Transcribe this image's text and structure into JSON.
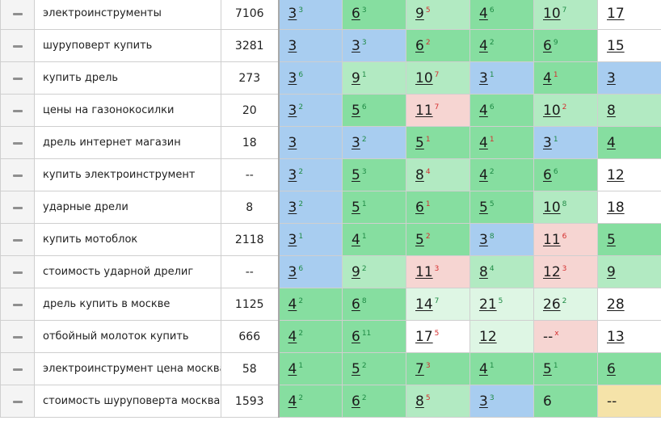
{
  "colors": {
    "blue": "#a8cdf0",
    "green": "#86dea0",
    "lgreen": "#b2eac2",
    "pale": "#def6e4",
    "pink": "#f6d5d2",
    "white": "#ffffff",
    "yellow": "#f5e3a9",
    "delta_up": "#1e8a44",
    "delta_down": "#d42f2f"
  },
  "handle_icon": "drag-handle-icon",
  "rows": [
    {
      "keyword": "электроинструменты",
      "freq": "7106",
      "cells": [
        {
          "v": "3",
          "d": "3",
          "dir": "up",
          "c": "blue"
        },
        {
          "v": "6",
          "d": "3",
          "dir": "up",
          "c": "green"
        },
        {
          "v": "9",
          "d": "5",
          "dir": "dn",
          "c": "lgreen"
        },
        {
          "v": "4",
          "d": "6",
          "dir": "up",
          "c": "green"
        },
        {
          "v": "10",
          "d": "7",
          "dir": "up",
          "c": "lgreen"
        },
        {
          "v": "17",
          "d": "",
          "dir": "",
          "c": "white"
        }
      ]
    },
    {
      "keyword": "шуруповерт купить",
      "freq": "3281",
      "cells": [
        {
          "v": "3",
          "d": "",
          "dir": "",
          "c": "blue"
        },
        {
          "v": "3",
          "d": "3",
          "dir": "up",
          "c": "blue"
        },
        {
          "v": "6",
          "d": "2",
          "dir": "dn",
          "c": "green"
        },
        {
          "v": "4",
          "d": "2",
          "dir": "up",
          "c": "green"
        },
        {
          "v": "6",
          "d": "9",
          "dir": "up",
          "c": "green"
        },
        {
          "v": "15",
          "d": "",
          "dir": "",
          "c": "white"
        }
      ]
    },
    {
      "keyword": "купить дрель",
      "freq": "273",
      "cells": [
        {
          "v": "3",
          "d": "6",
          "dir": "up",
          "c": "blue"
        },
        {
          "v": "9",
          "d": "1",
          "dir": "up",
          "c": "lgreen"
        },
        {
          "v": "10",
          "d": "7",
          "dir": "dn",
          "c": "lgreen"
        },
        {
          "v": "3",
          "d": "1",
          "dir": "up",
          "c": "blue"
        },
        {
          "v": "4",
          "d": "1",
          "dir": "dn",
          "c": "green"
        },
        {
          "v": "3",
          "d": "",
          "dir": "",
          "c": "blue"
        }
      ]
    },
    {
      "keyword": "цены на газонокосилки",
      "freq": "20",
      "cells": [
        {
          "v": "3",
          "d": "2",
          "dir": "up",
          "c": "blue"
        },
        {
          "v": "5",
          "d": "6",
          "dir": "up",
          "c": "green"
        },
        {
          "v": "11",
          "d": "7",
          "dir": "dn",
          "c": "pink"
        },
        {
          "v": "4",
          "d": "6",
          "dir": "up",
          "c": "green"
        },
        {
          "v": "10",
          "d": "2",
          "dir": "dn",
          "c": "lgreen"
        },
        {
          "v": "8",
          "d": "",
          "dir": "",
          "c": "lgreen"
        }
      ]
    },
    {
      "keyword": "дрель интернет магазин",
      "freq": "18",
      "cells": [
        {
          "v": "3",
          "d": "",
          "dir": "",
          "c": "blue"
        },
        {
          "v": "3",
          "d": "2",
          "dir": "up",
          "c": "blue"
        },
        {
          "v": "5",
          "d": "1",
          "dir": "dn",
          "c": "green"
        },
        {
          "v": "4",
          "d": "1",
          "dir": "dn",
          "c": "green"
        },
        {
          "v": "3",
          "d": "1",
          "dir": "up",
          "c": "blue"
        },
        {
          "v": "4",
          "d": "",
          "dir": "",
          "c": "green"
        }
      ]
    },
    {
      "keyword": "купить электроинструмент",
      "freq": "--",
      "cells": [
        {
          "v": "3",
          "d": "2",
          "dir": "up",
          "c": "blue"
        },
        {
          "v": "5",
          "d": "3",
          "dir": "up",
          "c": "green"
        },
        {
          "v": "8",
          "d": "4",
          "dir": "dn",
          "c": "lgreen"
        },
        {
          "v": "4",
          "d": "2",
          "dir": "up",
          "c": "green"
        },
        {
          "v": "6",
          "d": "6",
          "dir": "up",
          "c": "green"
        },
        {
          "v": "12",
          "d": "",
          "dir": "",
          "c": "white"
        }
      ]
    },
    {
      "keyword": "ударные дрели",
      "freq": "8",
      "cells": [
        {
          "v": "3",
          "d": "2",
          "dir": "up",
          "c": "blue"
        },
        {
          "v": "5",
          "d": "1",
          "dir": "up",
          "c": "green"
        },
        {
          "v": "6",
          "d": "1",
          "dir": "dn",
          "c": "green"
        },
        {
          "v": "5",
          "d": "5",
          "dir": "up",
          "c": "green"
        },
        {
          "v": "10",
          "d": "8",
          "dir": "up",
          "c": "lgreen"
        },
        {
          "v": "18",
          "d": "",
          "dir": "",
          "c": "white"
        }
      ]
    },
    {
      "keyword": "купить мотоблок",
      "freq": "2118",
      "cells": [
        {
          "v": "3",
          "d": "1",
          "dir": "up",
          "c": "blue"
        },
        {
          "v": "4",
          "d": "1",
          "dir": "up",
          "c": "green"
        },
        {
          "v": "5",
          "d": "2",
          "dir": "dn",
          "c": "green"
        },
        {
          "v": "3",
          "d": "8",
          "dir": "up",
          "c": "blue"
        },
        {
          "v": "11",
          "d": "6",
          "dir": "dn",
          "c": "pink"
        },
        {
          "v": "5",
          "d": "",
          "dir": "",
          "c": "green"
        }
      ]
    },
    {
      "keyword": "стоимость ударной дрелиг",
      "freq": "--",
      "cells": [
        {
          "v": "3",
          "d": "6",
          "dir": "up",
          "c": "blue"
        },
        {
          "v": "9",
          "d": "2",
          "dir": "up",
          "c": "lgreen"
        },
        {
          "v": "11",
          "d": "3",
          "dir": "dn",
          "c": "pink"
        },
        {
          "v": "8",
          "d": "4",
          "dir": "up",
          "c": "lgreen"
        },
        {
          "v": "12",
          "d": "3",
          "dir": "dn",
          "c": "pink"
        },
        {
          "v": "9",
          "d": "",
          "dir": "",
          "c": "lgreen"
        }
      ]
    },
    {
      "keyword": "дрель купить в москве",
      "freq": "1125",
      "cells": [
        {
          "v": "4",
          "d": "2",
          "dir": "up",
          "c": "green"
        },
        {
          "v": "6",
          "d": "8",
          "dir": "up",
          "c": "green"
        },
        {
          "v": "14",
          "d": "7",
          "dir": "up",
          "c": "pale"
        },
        {
          "v": "21",
          "d": "5",
          "dir": "up",
          "c": "pale"
        },
        {
          "v": "26",
          "d": "2",
          "dir": "up",
          "c": "pale"
        },
        {
          "v": "28",
          "d": "",
          "dir": "",
          "c": "white"
        }
      ]
    },
    {
      "keyword": "отбойный молоток купить",
      "freq": "666",
      "cells": [
        {
          "v": "4",
          "d": "2",
          "dir": "up",
          "c": "green"
        },
        {
          "v": "6",
          "d": "11",
          "dir": "up",
          "c": "green"
        },
        {
          "v": "17",
          "d": "5",
          "dir": "dn",
          "c": "white"
        },
        {
          "v": "12",
          "d": "",
          "dir": "",
          "c": "pale"
        },
        {
          "v": "--",
          "d": "x",
          "dir": "dn",
          "c": "pink",
          "plain": true
        },
        {
          "v": "13",
          "d": "",
          "dir": "",
          "c": "white"
        }
      ]
    },
    {
      "keyword": "электроинструмент цена москва",
      "freq": "58",
      "cells": [
        {
          "v": "4",
          "d": "1",
          "dir": "up",
          "c": "green"
        },
        {
          "v": "5",
          "d": "2",
          "dir": "up",
          "c": "green"
        },
        {
          "v": "7",
          "d": "3",
          "dir": "dn",
          "c": "green"
        },
        {
          "v": "4",
          "d": "1",
          "dir": "up",
          "c": "green"
        },
        {
          "v": "5",
          "d": "1",
          "dir": "up",
          "c": "green"
        },
        {
          "v": "6",
          "d": "",
          "dir": "",
          "c": "green"
        }
      ]
    },
    {
      "keyword": "стоимость шуруповерта москва",
      "freq": "1593",
      "cells": [
        {
          "v": "4",
          "d": "2",
          "dir": "up",
          "c": "green"
        },
        {
          "v": "6",
          "d": "2",
          "dir": "up",
          "c": "green"
        },
        {
          "v": "8",
          "d": "5",
          "dir": "dn",
          "c": "lgreen"
        },
        {
          "v": "3",
          "d": "3",
          "dir": "up",
          "c": "blue"
        },
        {
          "v": "6",
          "d": "",
          "dir": "",
          "c": "green",
          "plain": true
        },
        {
          "v": "--",
          "d": "",
          "dir": "",
          "c": "yellow",
          "plain": true
        }
      ]
    }
  ]
}
